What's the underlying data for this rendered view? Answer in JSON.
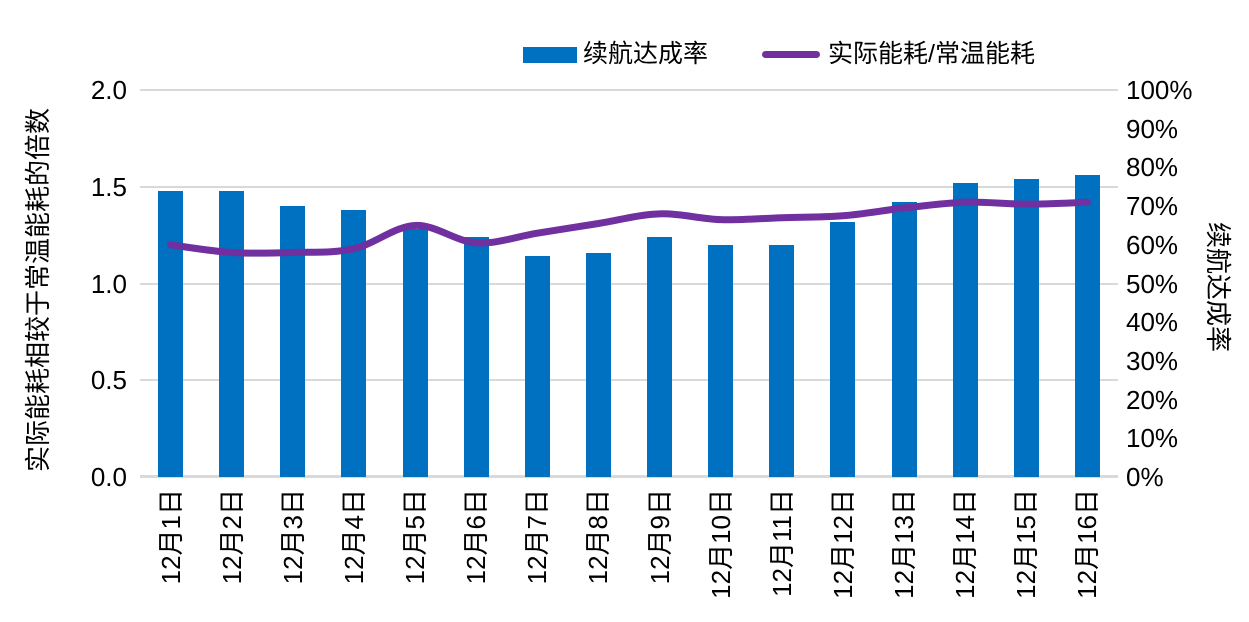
{
  "chart_data": {
    "type": "combo-bar-line",
    "background": "#FFFFFF",
    "grid": true,
    "gridline_color": "#D9D9D9",
    "legend_position": "top",
    "categories": [
      "12月1日",
      "12月2日",
      "12月3日",
      "12月4日",
      "12月5日",
      "12月6日",
      "12月7日",
      "12月8日",
      "12月9日",
      "12月10日",
      "12月11日",
      "12月12日",
      "12月13日",
      "12月14日",
      "12月15日",
      "12月16日"
    ],
    "series": [
      {
        "name": "续航达成率",
        "chart_type": "bar",
        "y_axis": "right",
        "color": "#0070C0",
        "values_percent": [
          74,
          74,
          70,
          69,
          64,
          62,
          57,
          58,
          62,
          60,
          60,
          66,
          71,
          76,
          77,
          78
        ]
      },
      {
        "name": "实际能耗/常温能耗",
        "chart_type": "line",
        "y_axis": "left",
        "color": "#7030A0",
        "values": [
          1.2,
          1.16,
          1.16,
          1.18,
          1.3,
          1.21,
          1.26,
          1.31,
          1.36,
          1.33,
          1.34,
          1.35,
          1.39,
          1.42,
          1.41,
          1.42
        ]
      }
    ],
    "left_axis": {
      "title": "实际能耗相较于常温能耗的倍数",
      "min": 0.0,
      "max": 2.0,
      "step": 0.5,
      "tick_labels": [
        "2.0",
        "1.5",
        "1.0",
        "0.5",
        "0.0"
      ]
    },
    "right_axis": {
      "title": "续航达成率",
      "min": "0%",
      "max": "100%",
      "step": "10%",
      "tick_labels": [
        "100%",
        "90%",
        "80%",
        "70%",
        "60%",
        "50%",
        "40%",
        "30%",
        "20%",
        "10%",
        "0%"
      ]
    }
  }
}
